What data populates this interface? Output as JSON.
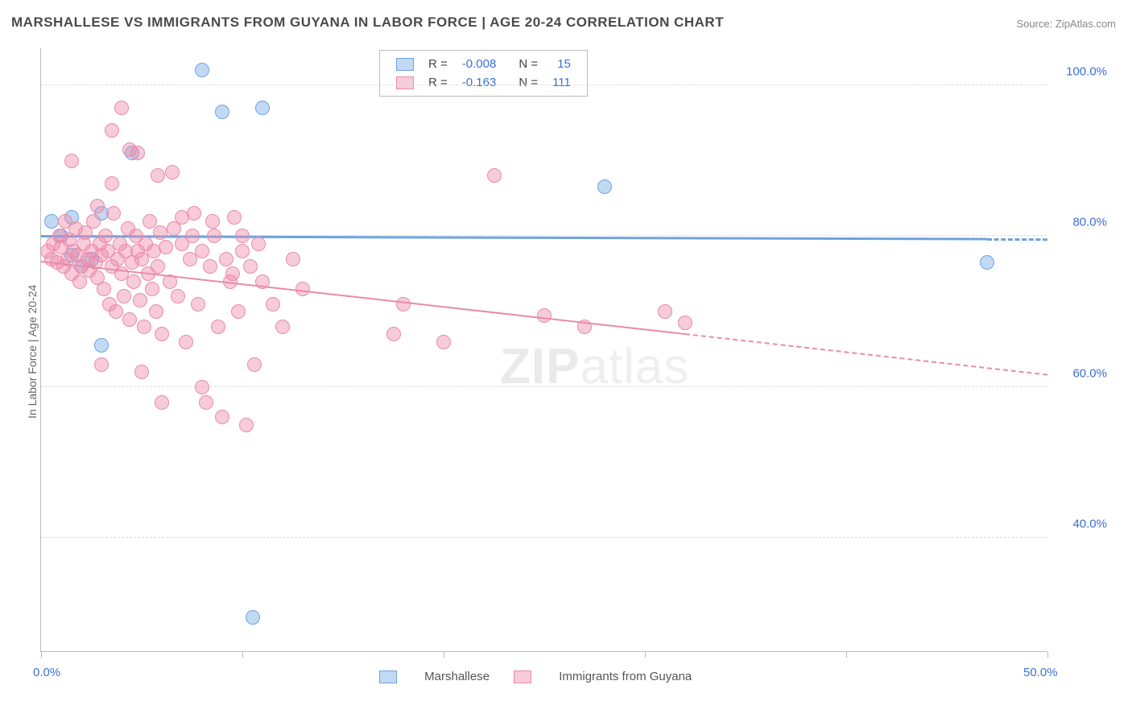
{
  "title": "MARSHALLESE VS IMMIGRANTS FROM GUYANA IN LABOR FORCE | AGE 20-24 CORRELATION CHART",
  "source": "Source: ZipAtlas.com",
  "watermark_a": "ZIP",
  "watermark_b": "atlas",
  "ylabel": "In Labor Force | Age 20-24",
  "chart": {
    "type": "scatter",
    "xlim": [
      0,
      50
    ],
    "ylim": [
      25,
      105
    ],
    "x_ticks": [
      0,
      10,
      20,
      30,
      40,
      50
    ],
    "y_ticks": [
      40,
      60,
      80,
      100
    ],
    "x_axis_labels": {
      "0": "0.0%",
      "50": "50.0%"
    },
    "y_axis_labels": {
      "40": "40.0%",
      "60": "60.0%",
      "80": "80.0%",
      "100": "100.0%"
    },
    "grid_color": "#dddddd",
    "background_color": "#ffffff",
    "series": [
      {
        "id": "marsh",
        "label": "Marshallese",
        "fill": "rgba(120,170,230,0.45)",
        "stroke": "#6da3e0",
        "R": "-0.008",
        "N": "15",
        "trend": {
          "y0": 79.8,
          "y1": 79.4,
          "x0": 0,
          "x1": 50,
          "solid_to": 47,
          "width": 3
        },
        "points": [
          [
            0.5,
            82
          ],
          [
            1.0,
            80
          ],
          [
            1.5,
            77.5
          ],
          [
            2.0,
            76
          ],
          [
            2.5,
            77
          ],
          [
            3.0,
            65.5
          ],
          [
            4.5,
            91
          ],
          [
            8.0,
            102
          ],
          [
            9.0,
            96.5
          ],
          [
            11.0,
            97
          ],
          [
            10.5,
            29.5
          ],
          [
            28.0,
            86.5
          ],
          [
            47.0,
            76.5
          ],
          [
            3.0,
            83
          ],
          [
            1.5,
            82.5
          ]
        ]
      },
      {
        "id": "guyana",
        "label": "Immigrants from Guyana",
        "fill": "rgba(240,140,170,0.45)",
        "stroke": "#e88bab",
        "R": "-0.163",
        "N": "111",
        "trend": {
          "y0": 76.5,
          "y1": 61.5,
          "x0": 0,
          "x1": 50,
          "solid_to": 32,
          "width": 2.5
        },
        "points": [
          [
            0.3,
            78
          ],
          [
            0.5,
            77
          ],
          [
            0.6,
            79
          ],
          [
            0.8,
            76.5
          ],
          [
            0.9,
            80
          ],
          [
            1.0,
            78.5
          ],
          [
            1.1,
            76
          ],
          [
            1.2,
            82
          ],
          [
            1.3,
            77
          ],
          [
            1.4,
            79.5
          ],
          [
            1.5,
            75
          ],
          [
            1.6,
            78
          ],
          [
            1.7,
            81
          ],
          [
            1.8,
            77.5
          ],
          [
            1.9,
            74
          ],
          [
            2.0,
            76
          ],
          [
            2.1,
            79
          ],
          [
            2.2,
            80.5
          ],
          [
            2.3,
            77
          ],
          [
            2.4,
            75.5
          ],
          [
            2.5,
            78
          ],
          [
            2.6,
            82
          ],
          [
            2.7,
            76.5
          ],
          [
            2.8,
            74.5
          ],
          [
            2.9,
            79
          ],
          [
            3.0,
            77.5
          ],
          [
            3.1,
            73
          ],
          [
            3.2,
            80
          ],
          [
            3.3,
            78
          ],
          [
            3.4,
            71
          ],
          [
            3.5,
            76
          ],
          [
            3.6,
            83
          ],
          [
            3.7,
            70
          ],
          [
            3.8,
            77
          ],
          [
            3.9,
            79
          ],
          [
            4.0,
            75
          ],
          [
            4.1,
            72
          ],
          [
            4.2,
            78
          ],
          [
            4.3,
            81
          ],
          [
            4.4,
            69
          ],
          [
            4.5,
            76.5
          ],
          [
            4.6,
            74
          ],
          [
            4.7,
            80
          ],
          [
            4.8,
            78
          ],
          [
            4.9,
            71.5
          ],
          [
            5.0,
            77
          ],
          [
            5.1,
            68
          ],
          [
            5.2,
            79
          ],
          [
            5.3,
            75
          ],
          [
            5.4,
            82
          ],
          [
            5.5,
            73
          ],
          [
            5.6,
            78
          ],
          [
            5.7,
            70
          ],
          [
            5.8,
            76
          ],
          [
            5.9,
            80.5
          ],
          [
            6.0,
            67
          ],
          [
            6.2,
            78.5
          ],
          [
            6.4,
            74
          ],
          [
            6.6,
            81
          ],
          [
            6.8,
            72
          ],
          [
            7.0,
            79
          ],
          [
            7.2,
            66
          ],
          [
            7.4,
            77
          ],
          [
            7.6,
            83
          ],
          [
            7.8,
            71
          ],
          [
            8.0,
            78
          ],
          [
            8.2,
            58
          ],
          [
            8.4,
            76
          ],
          [
            8.6,
            80
          ],
          [
            8.8,
            68
          ],
          [
            9.0,
            56
          ],
          [
            9.2,
            77
          ],
          [
            9.4,
            74
          ],
          [
            9.6,
            82.5
          ],
          [
            9.8,
            70
          ],
          [
            10.0,
            78
          ],
          [
            10.2,
            55
          ],
          [
            10.4,
            76
          ],
          [
            10.6,
            63
          ],
          [
            10.8,
            79
          ],
          [
            4.0,
            97
          ],
          [
            4.4,
            91.5
          ],
          [
            3.5,
            94
          ],
          [
            5.8,
            88
          ],
          [
            6.5,
            88.5
          ],
          [
            7.0,
            82.5
          ],
          [
            7.5,
            80
          ],
          [
            8.5,
            82
          ],
          [
            9.5,
            75
          ],
          [
            10.0,
            80
          ],
          [
            3.0,
            63
          ],
          [
            5.0,
            62
          ],
          [
            6.0,
            58
          ],
          [
            8.0,
            60
          ],
          [
            11.0,
            74
          ],
          [
            11.5,
            71
          ],
          [
            12.0,
            68
          ],
          [
            12.5,
            77
          ],
          [
            13.0,
            73
          ],
          [
            17.5,
            67
          ],
          [
            18.0,
            71
          ],
          [
            20.0,
            66
          ],
          [
            22.5,
            88
          ],
          [
            25.0,
            69.5
          ],
          [
            27.0,
            68
          ],
          [
            31.0,
            70
          ],
          [
            32.0,
            68.5
          ],
          [
            4.8,
            91
          ],
          [
            3.5,
            87
          ],
          [
            2.8,
            84
          ],
          [
            1.5,
            90
          ]
        ]
      }
    ]
  },
  "legend_top": {
    "R_label": "R =",
    "N_label": "N ="
  },
  "colors": {
    "stat_value": "#3b6fd6",
    "stat_label": "#444"
  }
}
